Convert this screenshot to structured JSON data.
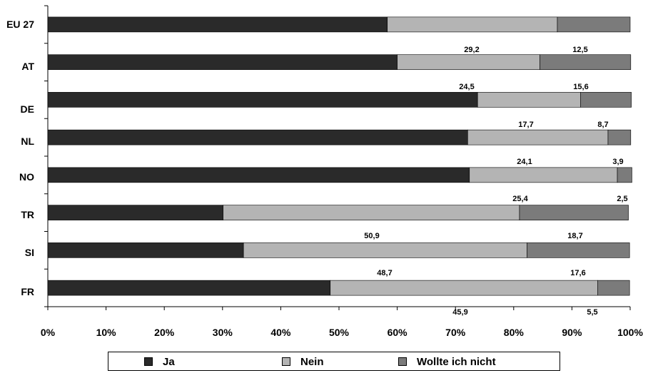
{
  "chart_data": {
    "type": "bar",
    "orientation": "horizontal",
    "stacked": true,
    "title": "",
    "xlabel": "",
    "ylabel": "",
    "xlim": [
      0,
      100
    ],
    "x_ticks": [
      "0%",
      "10%",
      "20%",
      "30%",
      "40%",
      "50%",
      "60%",
      "70%",
      "80%",
      "90%",
      "100%"
    ],
    "categories": [
      "EU 27",
      "AT",
      "DE",
      "NL",
      "NO",
      "TR",
      "SI",
      "FR"
    ],
    "series": [
      {
        "name": "Ja",
        "color": "#2a2a2a",
        "values": [
          58.3,
          60.0,
          73.8,
          72.1,
          72.4,
          30.1,
          33.6,
          48.5
        ]
      },
      {
        "name": "Nein",
        "color": "#b4b4b4",
        "values": [
          29.2,
          24.5,
          17.7,
          24.1,
          25.4,
          50.9,
          48.7,
          45.9
        ]
      },
      {
        "name": "Wollte ich nicht",
        "color": "#7b7b7b",
        "values": [
          12.5,
          15.6,
          8.7,
          3.9,
          2.5,
          18.7,
          17.6,
          5.5
        ]
      }
    ],
    "data_labels": {
      "nein": [
        "29,2",
        "24,5",
        "17,7",
        "24,1",
        "25,4",
        "50,9",
        "48,7",
        "45,9"
      ],
      "wollte": [
        "12,5",
        "15,6",
        "8,7",
        "3,9",
        "2,5",
        "18,7",
        "17,6",
        "5,5"
      ]
    },
    "legend_position": "bottom",
    "grid": false
  },
  "legend": {
    "items": [
      {
        "label": "Ja",
        "color": "#2a2a2a"
      },
      {
        "label": "Nein",
        "color": "#b4b4b4"
      },
      {
        "label": "Wollte ich nicht",
        "color": "#7b7b7b"
      }
    ]
  }
}
